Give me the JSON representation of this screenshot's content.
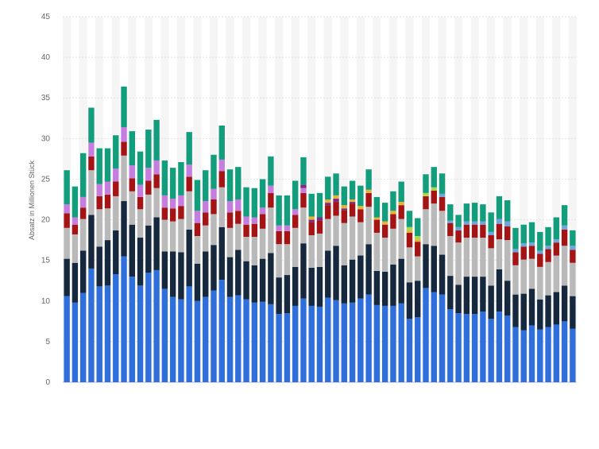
{
  "chart_data": {
    "type": "bar",
    "stacked": true,
    "title": "",
    "xlabel": "",
    "ylabel": "Absatz in Millionen Stück",
    "ylim": [
      0,
      45
    ],
    "yticks": [
      0,
      5,
      10,
      15,
      20,
      25,
      30,
      35,
      40,
      45
    ],
    "grid": true,
    "legend": "none",
    "series_colors": [
      "#2f6fdc",
      "#16283d",
      "#b9b9b9",
      "#a41414",
      "#c57ee0",
      "#7d2b83",
      "#e5b23c",
      "#a7d84c",
      "#6fa5dc",
      "#129d7d"
    ],
    "series": [
      {
        "name": "",
        "values": [
          10.6,
          9.8,
          11.0,
          14.0,
          11.8,
          11.9,
          13.3,
          15.5,
          13.0,
          11.9,
          13.5,
          13.8,
          11.5,
          10.5,
          10.2,
          11.8,
          10.0,
          10.5,
          11.3,
          12.6,
          10.5,
          10.7,
          10.2,
          9.8,
          9.9,
          9.6,
          8.4,
          8.5,
          9.4,
          10.3,
          9.4,
          9.3,
          10.4,
          10.1,
          9.7,
          9.8,
          10.3,
          10.8,
          9.5,
          9.4,
          9.4,
          9.7,
          7.8,
          8.0,
          11.6,
          11.1,
          10.8,
          9.0,
          8.5,
          8.4,
          8.4,
          8.7,
          7.8,
          8.7,
          8.2,
          6.8,
          6.4,
          7.0,
          6.5,
          6.8,
          7.1,
          7.5,
          6.6
        ]
      },
      {
        "name": "",
        "values": [
          4.6,
          4.9,
          5.2,
          6.6,
          4.9,
          5.6,
          5.4,
          6.8,
          6.4,
          5.9,
          5.8,
          6.5,
          4.6,
          5.6,
          5.8,
          7.0,
          4.6,
          5.6,
          5.6,
          6.5,
          4.9,
          5.6,
          4.7,
          4.6,
          5.3,
          6.3,
          4.5,
          4.7,
          4.8,
          6.8,
          4.7,
          4.9,
          5.8,
          6.7,
          4.7,
          5.3,
          5.3,
          6.2,
          4.2,
          4.2,
          5.1,
          5.5,
          4.5,
          4.5,
          5.4,
          5.7,
          4.9,
          4.1,
          3.5,
          4.6,
          4.6,
          4.3,
          4.1,
          5.2,
          4.3,
          4.0,
          4.5,
          4.5,
          3.7,
          3.9,
          4.0,
          4.4,
          4.0
        ]
      },
      {
        "name": "",
        "values": [
          3.8,
          3.5,
          3.9,
          5.5,
          4.6,
          3.9,
          4.2,
          5.6,
          4.1,
          3.5,
          3.8,
          3.6,
          3.9,
          3.7,
          4.1,
          4.7,
          3.4,
          3.2,
          3.8,
          4.9,
          3.6,
          3.2,
          3.0,
          3.5,
          3.7,
          5.6,
          4.1,
          3.8,
          4.8,
          4.4,
          4.0,
          4.1,
          3.9,
          3.7,
          5.2,
          5.3,
          4.1,
          4.6,
          4.7,
          4.2,
          4.4,
          4.9,
          4.3,
          3.0,
          4.3,
          5.2,
          5.4,
          4.9,
          5.2,
          4.8,
          4.8,
          4.8,
          4.6,
          3.7,
          5.0,
          3.6,
          4.2,
          3.7,
          4.0,
          4.1,
          4.5,
          4.9,
          4.1
        ]
      },
      {
        "name": "",
        "values": [
          1.8,
          1.2,
          1.4,
          1.7,
          1.6,
          1.7,
          1.8,
          1.7,
          1.6,
          1.5,
          1.7,
          1.7,
          1.5,
          1.6,
          1.6,
          1.8,
          1.6,
          1.6,
          1.8,
          2.0,
          1.9,
          1.6,
          1.5,
          1.6,
          1.8,
          1.8,
          1.6,
          1.6,
          1.6,
          1.8,
          1.6,
          1.6,
          1.7,
          1.7,
          1.6,
          1.6,
          1.6,
          1.7,
          1.6,
          1.6,
          1.8,
          1.7,
          1.8,
          1.8,
          1.6,
          1.6,
          1.7,
          1.6,
          1.5,
          1.6,
          1.6,
          1.6,
          1.6,
          1.9,
          1.7,
          1.6,
          1.6,
          1.6,
          1.6,
          1.6,
          1.6,
          2.0,
          1.6
        ]
      },
      {
        "name": "",
        "values": [
          1.1,
          0.9,
          1.3,
          1.7,
          1.5,
          1.6,
          1.6,
          1.8,
          1.6,
          1.5,
          1.6,
          1.7,
          1.5,
          1.2,
          1.3,
          1.5,
          1.5,
          1.4,
          1.3,
          1.4,
          1.4,
          1.4,
          1.0,
          0.8,
          0.8,
          0.9,
          0.7,
          0.7,
          0.7,
          0.6,
          0.0,
          0.0,
          0.0,
          0.0,
          0.0,
          0.0,
          0.0,
          0.0,
          0.0,
          0.0,
          0.0,
          0.0,
          0.0,
          0.0,
          0.0,
          0.0,
          0.0,
          0.0,
          0.0,
          0.0,
          0.0,
          0.0,
          0.0,
          0.0,
          0.0,
          0.0,
          0.0,
          0.0,
          0.0,
          0.0,
          0.0,
          0.0,
          0.0
        ]
      },
      {
        "name": "",
        "values": [
          0.0,
          0.0,
          0.0,
          0.0,
          0.0,
          0.0,
          0.0,
          0.0,
          0.0,
          0.0,
          0.0,
          0.0,
          0.0,
          0.0,
          0.0,
          0.0,
          0.0,
          0.0,
          0.0,
          0.0,
          0.0,
          0.0,
          0.0,
          0.0,
          0.0,
          0.0,
          0.0,
          0.0,
          0.0,
          0.4,
          0.3,
          0.4,
          0.3,
          0.4,
          0.2,
          0.2,
          0.0,
          0.0,
          0.0,
          0.0,
          0.0,
          0.0,
          0.0,
          0.0,
          0.0,
          0.0,
          0.0,
          0.0,
          0.0,
          0.0,
          0.0,
          0.0,
          0.0,
          0.0,
          0.0,
          0.0,
          0.0,
          0.0,
          0.0,
          0.0,
          0.0,
          0.0,
          0.0
        ]
      },
      {
        "name": "",
        "values": [
          0.0,
          0.0,
          0.0,
          0.0,
          0.0,
          0.0,
          0.0,
          0.0,
          0.0,
          0.0,
          0.0,
          0.0,
          0.0,
          0.0,
          0.0,
          0.0,
          0.0,
          0.0,
          0.0,
          0.0,
          0.0,
          0.0,
          0.0,
          0.0,
          0.0,
          0.0,
          0.0,
          0.0,
          0.0,
          0.0,
          0.4,
          0.0,
          0.4,
          0.4,
          0.4,
          0.3,
          0.4,
          0.4,
          0.3,
          0.4,
          0.4,
          0.4,
          0.3,
          0.3,
          0.0,
          0.0,
          0.0,
          0.0,
          0.0,
          0.0,
          0.0,
          0.0,
          0.0,
          0.0,
          0.0,
          0.0,
          0.0,
          0.0,
          0.0,
          0.0,
          0.0,
          0.0,
          0.0
        ]
      },
      {
        "name": "",
        "values": [
          0.0,
          0.0,
          0.0,
          0.0,
          0.0,
          0.0,
          0.0,
          0.0,
          0.0,
          0.0,
          0.0,
          0.0,
          0.0,
          0.0,
          0.0,
          0.0,
          0.0,
          0.0,
          0.0,
          0.0,
          0.0,
          0.0,
          0.0,
          0.0,
          0.0,
          0.0,
          0.0,
          0.0,
          0.0,
          0.0,
          0.0,
          0.0,
          0.0,
          0.0,
          0.0,
          0.0,
          0.0,
          0.0,
          0.0,
          0.0,
          0.0,
          0.0,
          0.4,
          0.4,
          0.4,
          0.4,
          0.0,
          0.0,
          0.0,
          0.0,
          0.0,
          0.0,
          0.0,
          0.0,
          0.0,
          0.0,
          0.0,
          0.0,
          0.0,
          0.0,
          0.0,
          0.0,
          0.0
        ]
      },
      {
        "name": "",
        "values": [
          0.0,
          0.0,
          0.0,
          0.0,
          0.0,
          0.0,
          0.0,
          0.0,
          0.0,
          0.0,
          0.0,
          0.0,
          0.0,
          0.0,
          0.0,
          0.0,
          0.0,
          0.0,
          0.0,
          0.0,
          0.0,
          0.0,
          0.0,
          0.0,
          0.0,
          0.0,
          0.0,
          0.0,
          0.0,
          0.0,
          0.0,
          0.0,
          0.0,
          0.0,
          0.0,
          0.0,
          0.0,
          0.0,
          0.0,
          0.0,
          0.0,
          0.0,
          0.0,
          0.0,
          0.0,
          0.0,
          0.4,
          0.3,
          0.4,
          0.4,
          0.4,
          0.4,
          0.4,
          0.6,
          0.6,
          0.4,
          0.4,
          0.4,
          0.4,
          0.4,
          0.4,
          0.5,
          0.5
        ]
      },
      {
        "name": "",
        "values": [
          4.2,
          3.8,
          5.4,
          4.3,
          4.4,
          4.1,
          4.1,
          5.0,
          4.2,
          4.1,
          4.7,
          5.0,
          4.3,
          3.8,
          4.1,
          4.0,
          3.8,
          3.8,
          4.2,
          4.2,
          3.9,
          4.0,
          3.6,
          3.6,
          3.5,
          3.6,
          3.7,
          3.7,
          3.5,
          3.4,
          2.8,
          3.0,
          2.8,
          2.7,
          2.3,
          2.3,
          2.5,
          2.5,
          2.5,
          2.3,
          2.4,
          2.5,
          2.0,
          2.2,
          2.3,
          2.5,
          2.5,
          2.0,
          1.5,
          2.2,
          2.3,
          2.1,
          2.4,
          2.8,
          2.6,
          2.6,
          2.3,
          2.5,
          2.3,
          2.3,
          2.7,
          2.5,
          1.9
        ]
      }
    ]
  }
}
